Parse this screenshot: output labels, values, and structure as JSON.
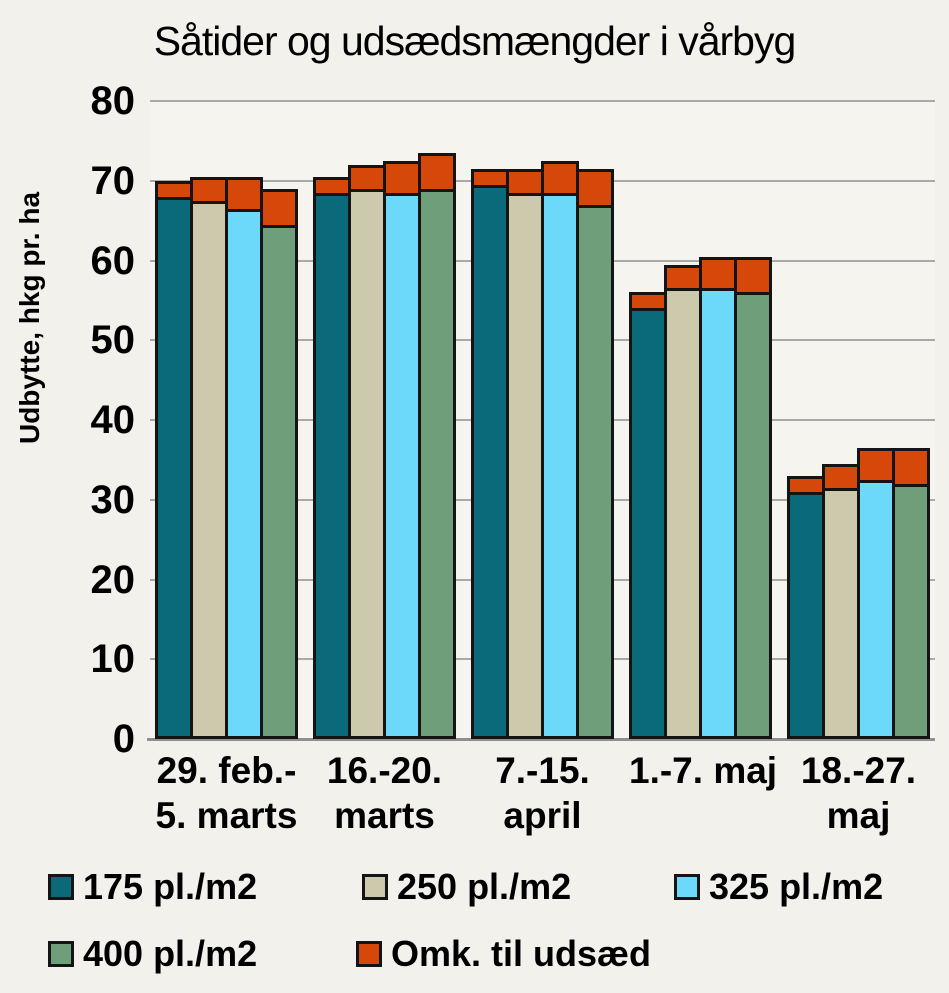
{
  "chart_data": {
    "type": "bar",
    "title": "Såtider og udsædsmængder i vårbyg",
    "ylabel": "Udbytte, hkg pr. ha",
    "xlabel": "",
    "ylim": [
      0,
      80
    ],
    "ytick_step": 10,
    "yticks": [
      "80",
      "70",
      "60",
      "50",
      "40",
      "30",
      "20",
      "10",
      "0"
    ],
    "grid": "horizontal",
    "legend_position": "bottom",
    "categories": [
      {
        "line1": "29. feb.-",
        "line2": "5. marts"
      },
      {
        "line1": "16.-20.",
        "line2": "marts"
      },
      {
        "line1": "7.-15.",
        "line2": "april"
      },
      {
        "line1": "1.-7. maj",
        "line2": ""
      },
      {
        "line1": "18.-27.",
        "line2": "maj"
      }
    ],
    "series": [
      {
        "name": "175 pl./m2",
        "color": "#0a6a7a",
        "yield_values": [
          68,
          68.5,
          69.5,
          54,
          31
        ],
        "seed_cost_values": [
          2,
          2,
          2,
          2,
          2
        ]
      },
      {
        "name": "250 pl./m2",
        "color": "#cdc9ac",
        "yield_values": [
          67.5,
          69,
          68.5,
          56.5,
          31.5
        ],
        "seed_cost_values": [
          3,
          3,
          3,
          3,
          3
        ]
      },
      {
        "name": "325 pl./m2",
        "color": "#6cd9fa",
        "yield_values": [
          66.5,
          68.5,
          68.5,
          56.5,
          32.5
        ],
        "seed_cost_values": [
          4,
          4,
          4,
          4,
          4
        ]
      },
      {
        "name": "400 pl./m2",
        "color": "#6f9e7a",
        "yield_values": [
          64.5,
          69,
          67,
          56,
          32
        ],
        "seed_cost_values": [
          4.5,
          4.5,
          4.5,
          4.5,
          4.5
        ]
      }
    ],
    "overlay_series": {
      "name": "Omk. til udsæd",
      "color": "#d6470a",
      "description": "seed-cost segment stacked on top of each yield bar"
    },
    "colors": {
      "background": "#f2f1ec",
      "plot_background": "#f5f4ef",
      "gridline": "#a9a9a9",
      "baseline": "#8f8f8f",
      "bar_outline": "#141414",
      "text": "#000000"
    }
  }
}
